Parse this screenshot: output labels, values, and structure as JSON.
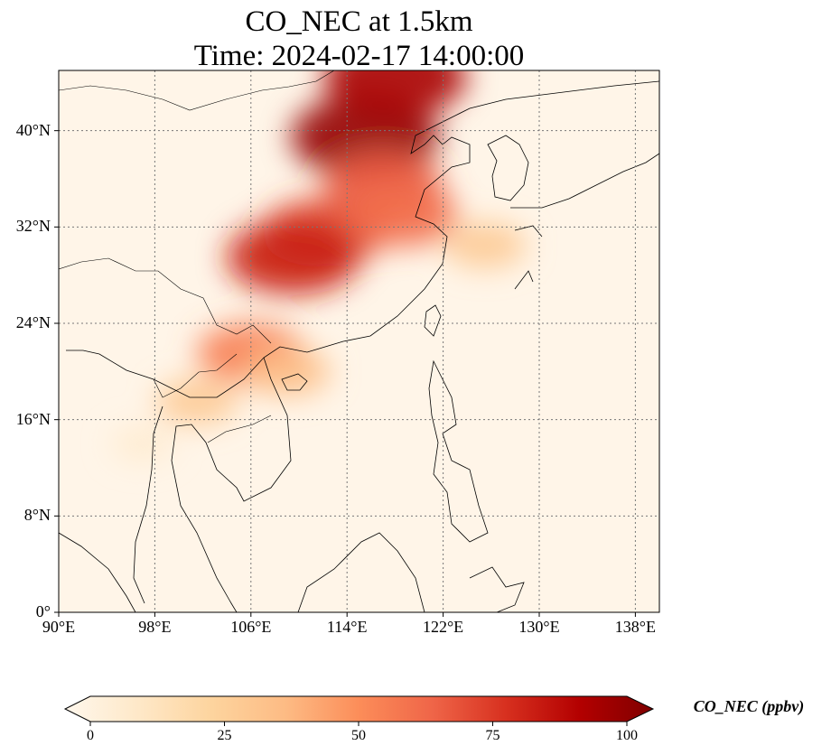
{
  "title": {
    "line1": "CO_NEC at 1.5km",
    "line2": "Time: 2024-02-17 14:00:00"
  },
  "map": {
    "projection": "PlateCarree",
    "lon_range": [
      90,
      140
    ],
    "lat_range": [
      0,
      45
    ],
    "gridlines": "dotted",
    "features": [
      "coastlines",
      "country borders"
    ],
    "colormap": "OrRd",
    "x_ticks": [
      {
        "value": 90,
        "label": "90°E"
      },
      {
        "value": 98,
        "label": "98°E"
      },
      {
        "value": 106,
        "label": "106°E"
      },
      {
        "value": 114,
        "label": "114°E"
      },
      {
        "value": 122,
        "label": "122°E"
      },
      {
        "value": 130,
        "label": "130°E"
      },
      {
        "value": 138,
        "label": "138°E"
      }
    ],
    "y_ticks": [
      {
        "value": 0,
        "label": "0°"
      },
      {
        "value": 8,
        "label": "8°N"
      },
      {
        "value": 16,
        "label": "16°N"
      },
      {
        "value": 24,
        "label": "24°N"
      },
      {
        "value": 32,
        "label": "32°N"
      },
      {
        "value": 40,
        "label": "40°N"
      }
    ],
    "concentration_plumes": [
      {
        "lon": 115.5,
        "lat": 39.5,
        "value": 95
      },
      {
        "lon": 118.0,
        "lat": 44.5,
        "value": 90
      },
      {
        "lon": 117.0,
        "lat": 35.5,
        "value": 65
      },
      {
        "lon": 112.0,
        "lat": 31.5,
        "value": 70
      },
      {
        "lon": 109.5,
        "lat": 29.5,
        "value": 80
      },
      {
        "lon": 118.5,
        "lat": 33.0,
        "value": 60
      },
      {
        "lon": 125.5,
        "lat": 30.5,
        "value": 30
      },
      {
        "lon": 106.0,
        "lat": 21.5,
        "value": 55
      },
      {
        "lon": 101.5,
        "lat": 17.5,
        "value": 30
      },
      {
        "lon": 109.0,
        "lat": 20.0,
        "value": 35
      },
      {
        "lon": 97.0,
        "lat": 14.0,
        "value": 10
      }
    ]
  },
  "colorbar": {
    "label": "CO_NEC (ppbv)",
    "range": [
      0,
      100
    ],
    "extend": "both",
    "colors": [
      "#fff7ec",
      "#fee8c8",
      "#fdd49e",
      "#fdbb84",
      "#fc8d59",
      "#ef6548",
      "#d7301f",
      "#b30000",
      "#7f0000"
    ],
    "ticks": [
      {
        "value": 0,
        "label": "0"
      },
      {
        "value": 25,
        "label": "25"
      },
      {
        "value": 50,
        "label": "50"
      },
      {
        "value": 75,
        "label": "75"
      },
      {
        "value": 100,
        "label": "100"
      }
    ]
  }
}
